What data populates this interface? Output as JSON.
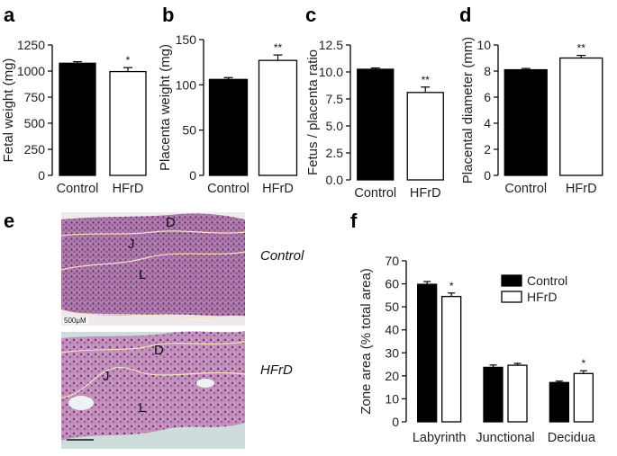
{
  "panels": {
    "a": "a",
    "b": "b",
    "c": "c",
    "d": "d",
    "e": "e",
    "f": "f"
  },
  "colors": {
    "control": "#000000",
    "hfrd": "#ffffff",
    "stroke": "#000000"
  },
  "chart_data": [
    {
      "id": "a",
      "type": "bar",
      "ylabel": "Fetal weight (mg)",
      "categories": [
        "Control",
        "HFrD"
      ],
      "series": [
        {
          "values": [
            1075,
            995
          ],
          "errors": [
            15,
            38
          ]
        }
      ],
      "significance": [
        "",
        "*"
      ],
      "ylim": [
        0,
        1250
      ],
      "yticks": [
        0,
        250,
        500,
        750,
        1000,
        1250
      ]
    },
    {
      "id": "b",
      "type": "bar",
      "ylabel": "Placenta weight (mg)",
      "categories": [
        "Control",
        "HFrD"
      ],
      "series": [
        {
          "values": [
            106,
            127
          ],
          "errors": [
            2,
            6
          ]
        }
      ],
      "significance": [
        "",
        "**"
      ],
      "ylim": [
        0,
        150
      ],
      "yticks": [
        0,
        50,
        100,
        150
      ]
    },
    {
      "id": "c",
      "type": "bar",
      "ylabel": "Fetus / placenta ratio",
      "categories": [
        "Control",
        "HFrD"
      ],
      "series": [
        {
          "values": [
            10.25,
            8.1
          ],
          "errors": [
            0.12,
            0.5
          ]
        }
      ],
      "significance": [
        "",
        "**"
      ],
      "ylim": [
        0,
        12.5
      ],
      "yticks": [
        "0.0",
        "2.5",
        "5.0",
        "7.5",
        "10.0",
        "12.5"
      ]
    },
    {
      "id": "d",
      "type": "bar",
      "ylabel": "Placental diameter (mm)",
      "categories": [
        "Control",
        "HFrD"
      ],
      "series": [
        {
          "values": [
            8.1,
            9.0
          ],
          "errors": [
            0.1,
            0.2
          ]
        }
      ],
      "significance": [
        "",
        "**"
      ],
      "ylim": [
        0,
        10
      ],
      "yticks": [
        0,
        2,
        4,
        6,
        8,
        10
      ]
    },
    {
      "id": "f",
      "type": "bar",
      "ylabel": "Zone area (% total area)",
      "categories": [
        "Labyrinth",
        "Junctional",
        "Decidua"
      ],
      "series": [
        {
          "name": "Control",
          "values": [
            59.8,
            23.7,
            17.1
          ],
          "errors": [
            1.2,
            1.0,
            0.6
          ]
        },
        {
          "name": "HFrD",
          "values": [
            54.5,
            24.6,
            21.0
          ],
          "errors": [
            1.5,
            0.8,
            1.2
          ]
        }
      ],
      "significance": [
        [
          "",
          "*"
        ],
        [
          "",
          ""
        ],
        [
          "",
          "*"
        ]
      ],
      "ylim": [
        0,
        70
      ],
      "yticks": [
        0,
        10,
        20,
        30,
        40,
        50,
        60,
        70
      ],
      "legend": "top-right"
    }
  ],
  "micrographs": {
    "control": {
      "label": "Control",
      "zones": [
        "D",
        "J",
        "L"
      ],
      "scale": "500μM"
    },
    "hfrd": {
      "label": "HFrD",
      "zones": [
        "D",
        "J",
        "L"
      ]
    }
  }
}
